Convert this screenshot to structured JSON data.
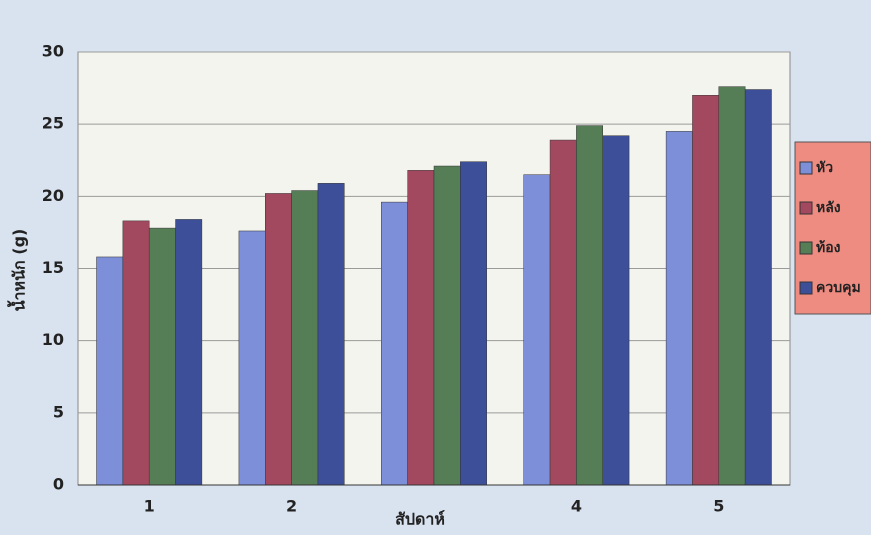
{
  "chart_data": {
    "type": "bar",
    "x_label": "สัปดาห์",
    "y_label": "น้ำหนัก (g)",
    "categories": [
      "1",
      "2",
      null,
      "4",
      "5"
    ],
    "series": [
      {
        "name": "หัว",
        "color": "#7d8fd8",
        "values": [
          15.8,
          17.6,
          19.6,
          21.5,
          24.5
        ]
      },
      {
        "name": "หลัง",
        "color": "#a3495f",
        "values": [
          18.3,
          20.2,
          21.8,
          23.9,
          27.0
        ]
      },
      {
        "name": "ท้อง",
        "color": "#557e57",
        "values": [
          17.8,
          20.4,
          22.1,
          24.9,
          27.6
        ]
      },
      {
        "name": "ควบคุม",
        "color": "#3c4f98",
        "values": [
          18.4,
          20.9,
          22.4,
          24.2,
          27.4
        ]
      }
    ],
    "ylim": [
      0,
      30
    ],
    "yticks": [
      0,
      5,
      10,
      15,
      20,
      25,
      30
    ],
    "grid": true
  }
}
